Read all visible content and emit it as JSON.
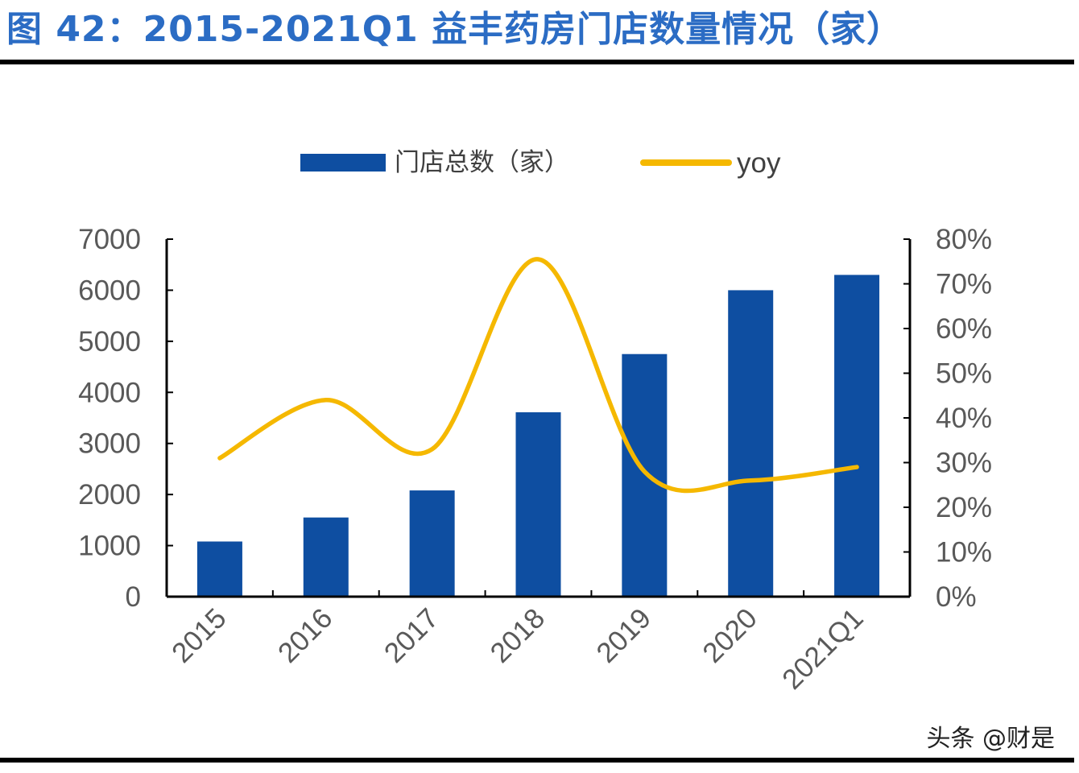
{
  "title": "图 42：2015-2021Q1 益丰药房门店数量情况（家）",
  "watermark": "头条 @财是",
  "colors": {
    "title": "#2b6cc4",
    "bar": "#0e4ea1",
    "line": "#f5b800",
    "axis": "#000000",
    "text": "#595959"
  },
  "chart_data": {
    "type": "bar",
    "title": "图 42：2015-2021Q1 益丰药房门店数量情况（家）",
    "categories": [
      "2015",
      "2016",
      "2017",
      "2018",
      "2019",
      "2020",
      "2021Q1"
    ],
    "series": [
      {
        "name": "门店总数（家）",
        "type": "bar",
        "axis": "left",
        "values": [
          1080,
          1550,
          2080,
          3610,
          4750,
          6000,
          6300
        ]
      },
      {
        "name": "yoy",
        "type": "line",
        "axis": "right",
        "smooth": true,
        "values": [
          0.31,
          0.44,
          0.33,
          0.755,
          0.28,
          0.26,
          0.29
        ]
      }
    ],
    "ylim_left": [
      0,
      7000
    ],
    "ylim_right": [
      0,
      0.8
    ],
    "yticks_left": [
      "0",
      "1000",
      "2000",
      "3000",
      "4000",
      "5000",
      "6000",
      "7000"
    ],
    "yticks_right": [
      "0%",
      "10%",
      "20%",
      "30%",
      "40%",
      "50%",
      "60%",
      "70%",
      "80%"
    ],
    "legend": {
      "bar_label": "门店总数（家）",
      "line_label": "yoy",
      "placement": "top-center"
    },
    "grid": false
  }
}
